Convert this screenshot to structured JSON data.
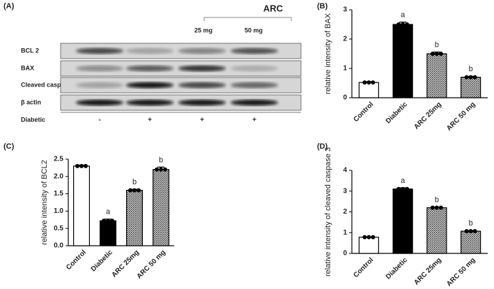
{
  "blot": {
    "panel": "(A)",
    "group_label": "ARC",
    "doses": [
      "25 mg",
      "50 mg"
    ],
    "rows": [
      "BCL 2",
      "BAX",
      "Cleaved caspase",
      "β actin"
    ],
    "condition": {
      "label": "Diabetic",
      "values": [
        "-",
        "+",
        "+",
        "+"
      ]
    }
  },
  "chart_data": [
    {
      "type": "bar",
      "panel": "(B)",
      "y_label": "relative intensity of BAX",
      "categories": [
        "Control",
        "Diabetic",
        "ARC 25mg",
        "ARC 50 mg"
      ],
      "values": [
        0.52,
        2.5,
        1.5,
        0.7
      ],
      "errors": [
        0.03,
        0.08,
        0.06,
        0.03
      ],
      "annotations": [
        null,
        "a",
        "b",
        "b"
      ],
      "fills": [
        "white",
        "black",
        "hatch",
        "hatch"
      ],
      "ylim": [
        0,
        3
      ],
      "yticks": [
        0,
        1,
        2,
        3
      ]
    },
    {
      "type": "bar",
      "panel": "(C)",
      "y_label": "relative intensity of BCL2",
      "categories": [
        "Control",
        "Diabetic",
        "ARC 25mg",
        "ARC 50 mg"
      ],
      "values": [
        2.3,
        0.72,
        1.6,
        2.2
      ],
      "errors": [
        0.03,
        0.05,
        0.03,
        0.07
      ],
      "annotations": [
        null,
        "a",
        "b",
        "b"
      ],
      "fills": [
        "white",
        "black",
        "hatch",
        "hatch"
      ],
      "ylim": [
        0,
        2.5
      ],
      "yticks": [
        {
          "value": 0,
          "label": "0.0"
        },
        {
          "value": 0.5,
          "label": "0.5"
        },
        {
          "value": 1,
          "label": "1.0"
        },
        {
          "value": 1.5,
          "label": "1.5"
        },
        {
          "value": 2,
          "label": "2.0"
        },
        {
          "value": 2.5,
          "label": "2.5"
        }
      ]
    },
    {
      "type": "bar",
      "panel": "(D)",
      "y_label": "relative intensity of cleaved caspase 3",
      "categories": [
        "Control",
        "Diabetic",
        "ARC 25mg",
        "ARC 50 mg"
      ],
      "values": [
        0.78,
        3.1,
        2.2,
        1.07
      ],
      "errors": [
        0.02,
        0.06,
        0.03,
        0.03
      ],
      "annotations": [
        null,
        "a",
        "b",
        "b"
      ],
      "fills": [
        "white",
        "black",
        "hatch",
        "hatch"
      ],
      "ylim": [
        0,
        4
      ],
      "yticks": [
        0,
        1,
        2,
        3,
        4
      ]
    }
  ]
}
